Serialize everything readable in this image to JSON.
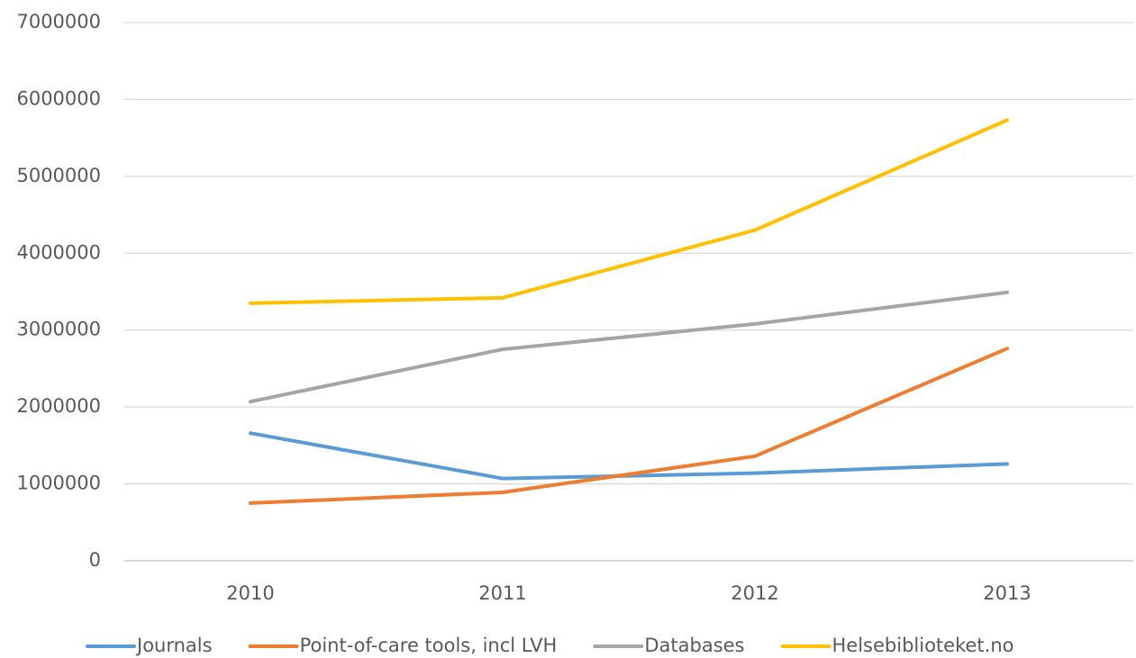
{
  "chart_data": {
    "type": "line",
    "categories": [
      "2010",
      "2011",
      "2012",
      "2013"
    ],
    "series": [
      {
        "name": "Journals",
        "color": "#5b9bd5",
        "values": [
          1660000,
          1070000,
          1140000,
          1260000
        ]
      },
      {
        "name": "Point-of-care tools, incl LVH",
        "color": "#ed7d31",
        "values": [
          750000,
          890000,
          1360000,
          2760000
        ]
      },
      {
        "name": "Databases",
        "color": "#a5a5a5",
        "values": [
          2070000,
          2750000,
          3080000,
          3490000
        ]
      },
      {
        "name": "Helsebiblioteket.no",
        "color": "#ffc000",
        "values": [
          3350000,
          3420000,
          4300000,
          5730000
        ]
      }
    ],
    "ylim": [
      0,
      7000000
    ],
    "yticks": [
      0,
      1000000,
      2000000,
      3000000,
      4000000,
      5000000,
      6000000,
      7000000
    ],
    "grid": true,
    "legend": "bottom"
  }
}
